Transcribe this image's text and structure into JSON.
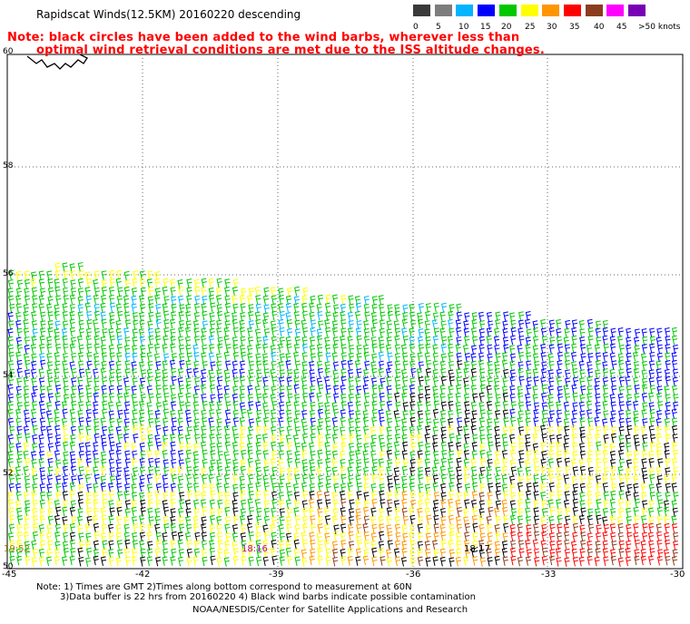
{
  "header": {
    "title": "Rapidscat Winds(12.5KM) 20160220 descending",
    "note_line1": "Note: black circles have been added to the wind barbs, wherever less than",
    "note_line2": "optimal wind retrieval conditions are met due to the ISS altitude changes."
  },
  "legend": {
    "bins": [
      {
        "label": "0",
        "color": "#3a3a3a"
      },
      {
        "label": "5",
        "color": "#7d7d7d"
      },
      {
        "label": "10",
        "color": "#00b4ff"
      },
      {
        "label": "15",
        "color": "#0000ff"
      },
      {
        "label": "20",
        "color": "#00c800"
      },
      {
        "label": "25",
        "color": "#ffff00"
      },
      {
        "label": "30",
        "color": "#ff9600"
      },
      {
        "label": "35",
        "color": "#ff0000"
      },
      {
        "label": "40",
        "color": "#8c3c1e"
      },
      {
        "label": "45",
        "color": "#ff00ff"
      },
      {
        "label": ">50 knots",
        "color": "#7800b4"
      }
    ]
  },
  "map": {
    "lat_labels": [
      "60",
      "58",
      "56",
      "54",
      "52",
      "50"
    ],
    "lon_labels": [
      "-45",
      "-42",
      "-39",
      "-36",
      "-33",
      "-30"
    ],
    "time_labels": [
      {
        "text": "19:52",
        "color": "#9a7a00"
      },
      {
        "text": "18:16",
        "color": "#b000b0"
      },
      {
        "text": "18:17",
        "color": "#000000"
      }
    ]
  },
  "footer": {
    "line1": "Note: 1) Times are GMT 2)Times along bottom correspond to measurement at 60N",
    "line2": "3)Data buffer is 22 hrs from 20160220 4) Black wind barbs indicate possible contamination",
    "line3": "NOAA/NESDIS/Center for Satellite Applications and Research"
  }
}
